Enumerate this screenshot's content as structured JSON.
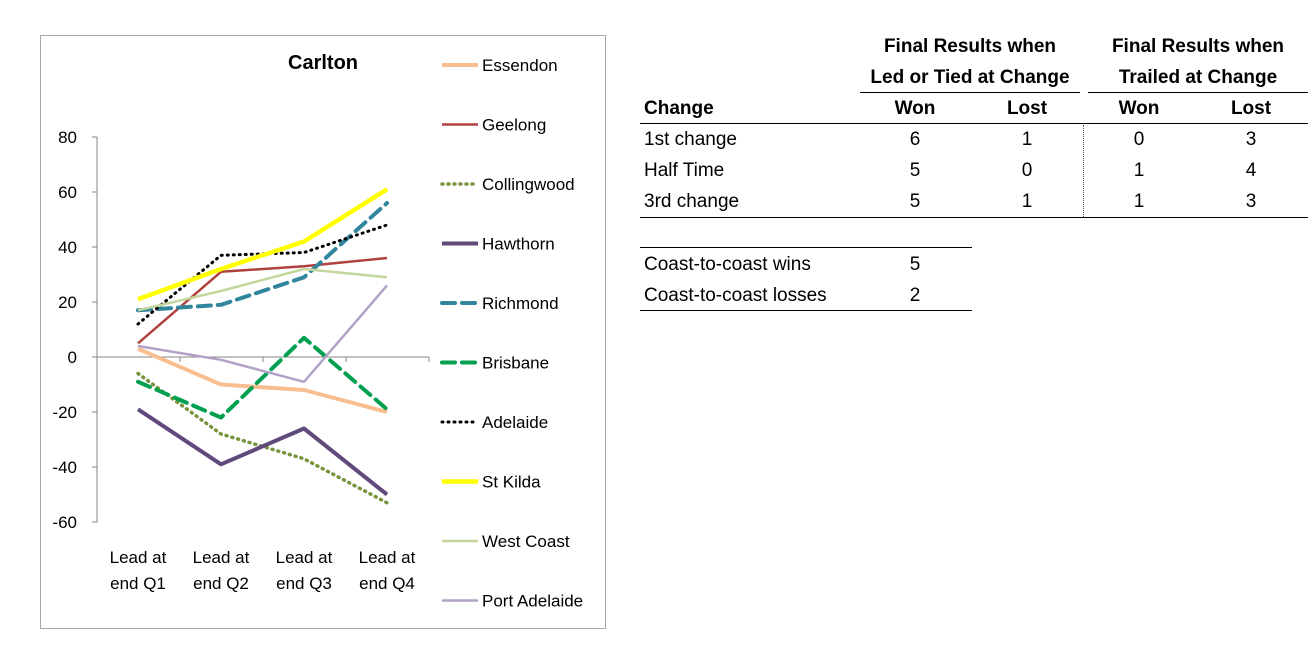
{
  "chart_data": {
    "type": "line",
    "title": "Carlton",
    "xlabel": "",
    "ylabel": "",
    "ylim": [
      -60,
      80
    ],
    "yticks": [
      -60,
      -40,
      -20,
      0,
      20,
      40,
      60,
      80
    ],
    "categories": [
      "Lead at end Q1",
      "Lead at end Q2",
      "Lead at end Q3",
      "Lead at end Q4"
    ],
    "category_lines": [
      [
        "Lead at",
        "end Q1"
      ],
      [
        "Lead at",
        "end Q2"
      ],
      [
        "Lead at",
        "end Q3"
      ],
      [
        "Lead at",
        "end Q4"
      ]
    ],
    "legend_placement": "right",
    "grid": false,
    "series": [
      {
        "name": "Essendon",
        "values": [
          3,
          -10,
          -12,
          -20
        ],
        "color": "#f9be8f",
        "dash": "solid",
        "width": 4
      },
      {
        "name": "Geelong",
        "values": [
          5,
          31,
          33,
          36
        ],
        "color": "#b0413e",
        "dash": "solid",
        "width": 2.5
      },
      {
        "name": "Collingwood",
        "values": [
          -6,
          -28,
          -37,
          -53
        ],
        "color": "#77933c",
        "dash": "dot",
        "width": 3.5
      },
      {
        "name": "Hawthorn",
        "values": [
          -19,
          -39,
          -26,
          -50
        ],
        "color": "#604a7b",
        "dash": "solid",
        "width": 4
      },
      {
        "name": "Richmond",
        "values": [
          17,
          19,
          29,
          56
        ],
        "color": "#31859c",
        "dash": "dash",
        "width": 4
      },
      {
        "name": "Brisbane",
        "values": [
          -9,
          -22,
          7,
          -19
        ],
        "color": "#00a050",
        "dash": "dash",
        "width": 4
      },
      {
        "name": "Adelaide",
        "values": [
          12,
          37,
          38,
          48
        ],
        "color": "#000000",
        "dash": "dot",
        "width": 3
      },
      {
        "name": "St Kilda",
        "values": [
          21,
          32,
          42,
          61
        ],
        "color": "#ffff00",
        "dash": "solid",
        "width": 4.5
      },
      {
        "name": "West Coast",
        "values": [
          17,
          24,
          32,
          29
        ],
        "color": "#c3d69b",
        "dash": "solid",
        "width": 2.5
      },
      {
        "name": "Port Adelaide",
        "values": [
          4,
          -1,
          -9,
          26
        ],
        "color": "#b3a2c7",
        "dash": "solid",
        "width": 2.5
      }
    ]
  },
  "results_table": {
    "group_headers": [
      {
        "line1": "Final Results when",
        "line2": "Led or Tied at Change"
      },
      {
        "line1": "Final Results when",
        "line2": "Trailed at Change"
      }
    ],
    "column_headers": [
      "Change",
      "Won",
      "Lost",
      "Won",
      "Lost"
    ],
    "rows": [
      {
        "label": "1st change",
        "led_won": "6",
        "led_lost": "1",
        "trailed_won": "0",
        "trailed_lost": "3"
      },
      {
        "label": "Half Time",
        "led_won": "5",
        "led_lost": "0",
        "trailed_won": "1",
        "trailed_lost": "4"
      },
      {
        "label": "3rd change",
        "led_won": "5",
        "led_lost": "1",
        "trailed_won": "1",
        "trailed_lost": "3"
      }
    ]
  },
  "coast_table": {
    "rows": [
      {
        "label": "Coast-to-coast wins",
        "value": "5"
      },
      {
        "label": "Coast-to-coast losses",
        "value": "2"
      }
    ]
  }
}
